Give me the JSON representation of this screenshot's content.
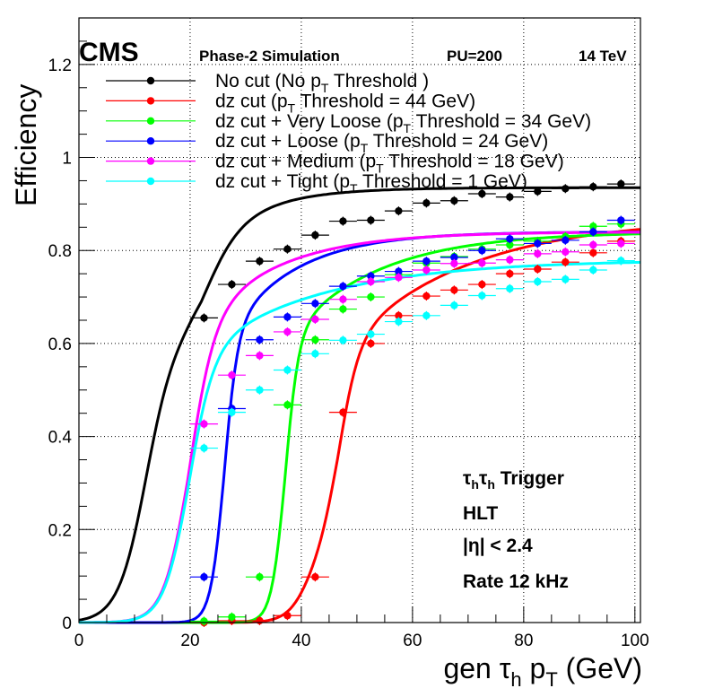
{
  "header": {
    "experiment": "CMS",
    "simulation": "Phase-2 Simulation",
    "pileup": "PU=200",
    "energy": "14 TeV"
  },
  "annotations": {
    "trigger": "τhτh Trigger",
    "level": "HLT",
    "eta_cut": "|η| < 2.4",
    "rate": "Rate 12 kHz"
  },
  "chart_data": {
    "type": "scatter",
    "xlabel": "gen τh pT (GeV)",
    "ylabel": "Efficiency",
    "xlim": [
      0,
      101
    ],
    "ylim": [
      0,
      1.3
    ],
    "x_ticks": [
      0,
      20,
      40,
      60,
      80,
      100
    ],
    "y_ticks": [
      0,
      0.2,
      0.4,
      0.6,
      0.8,
      1,
      1.2
    ],
    "y_tick_labels": [
      "0",
      "0.2",
      "0.4",
      "0.6",
      "0.8",
      "1",
      "1.2"
    ],
    "grid": true,
    "legend_position": "top",
    "x": [
      22.5,
      27.5,
      32.5,
      37.5,
      42.5,
      47.5,
      52.5,
      57.5,
      62.5,
      67.5,
      72.5,
      77.5,
      82.5,
      87.5,
      92.5,
      97.5
    ],
    "x_bin_half_width": 2.5,
    "series": [
      {
        "name": "No cut (No pT Threshold )",
        "legend_main": "No cut (No p",
        "legend_sub": "T",
        "legend_tail": " Threshold )",
        "color": "#000000",
        "values": [
          0.655,
          0.727,
          0.777,
          0.803,
          0.833,
          0.863,
          0.865,
          0.885,
          0.902,
          0.907,
          0.922,
          0.915,
          0.927,
          0.933,
          0.937,
          0.943
        ],
        "fit": {
          "model": "double",
          "p1": 12,
          "w1": 2.5,
          "a1": 0.6,
          "p2": 22,
          "w2": 3,
          "a2": 0.335,
          "tail": 10
        }
      },
      {
        "name": "dz cut (pT Threshold = 44 GeV)",
        "legend_main": "dz cut (p",
        "legend_sub": "T",
        "legend_tail": " Threshold = 44 GeV)",
        "color": "#ff0000",
        "values": [
          0.0,
          0.004,
          0.004,
          0.015,
          0.098,
          0.452,
          0.6,
          0.66,
          0.702,
          0.715,
          0.727,
          0.75,
          0.76,
          0.775,
          0.795,
          0.82
        ],
        "fit": {
          "model": "double",
          "p1": 41,
          "w1": 2,
          "a1": 0.14,
          "p2": 46.5,
          "w2": 1.8,
          "a2": 0.73,
          "tail": 22
        }
      },
      {
        "name": "dz cut + Very Loose (pT Threshold = 34 GeV)",
        "legend_main": "dz cut + Very Loose (p",
        "legend_sub": "T",
        "legend_tail": " Threshold = 34 GeV)",
        "color": "#00ff00",
        "values": [
          0.003,
          0.012,
          0.098,
          0.468,
          0.608,
          0.674,
          0.7,
          0.748,
          0.773,
          0.787,
          0.803,
          0.812,
          0.82,
          0.83,
          0.852,
          0.857
        ],
        "fit": {
          "model": "single",
          "p1": 37,
          "w1": 1.2,
          "a1": 0.84,
          "tail": 16
        }
      },
      {
        "name": "dz cut + Loose (pT Threshold = 24 GeV)",
        "legend_main": "dz cut + Loose (p",
        "legend_sub": "T",
        "legend_tail": " Threshold = 24 GeV)",
        "color": "#0000ff",
        "values": [
          0.098,
          0.46,
          0.608,
          0.657,
          0.686,
          0.723,
          0.745,
          0.755,
          0.777,
          0.785,
          0.8,
          0.825,
          0.815,
          0.822,
          0.84,
          0.865
        ],
        "fit": {
          "model": "single",
          "p1": 26,
          "w1": 1.2,
          "a1": 0.84,
          "tail": 12
        }
      },
      {
        "name": "dz cut + Medium (pT Threshold = 18 GeV)",
        "legend_main": "dz cut + Medium (p",
        "legend_sub": "T",
        "legend_tail": " Threshold = 18 GeV)",
        "color": "#ff00ff",
        "values": [
          0.427,
          0.532,
          0.574,
          0.625,
          0.652,
          0.695,
          0.733,
          0.742,
          0.758,
          0.772,
          0.773,
          0.78,
          0.793,
          0.797,
          0.812,
          0.815
        ],
        "fit": {
          "model": "single",
          "p1": 19.5,
          "w1": 2.2,
          "a1": 0.84,
          "tail": 14
        }
      },
      {
        "name": "dz cut + Tight (pT Threshold = 1 GeV)",
        "legend_main": "dz cut + Tight (p",
        "legend_sub": "T",
        "legend_tail": " Threshold = 1 GeV)",
        "color": "#00ffff",
        "values": [
          0.375,
          0.452,
          0.5,
          0.543,
          0.578,
          0.607,
          0.62,
          0.647,
          0.66,
          0.682,
          0.703,
          0.718,
          0.733,
          0.738,
          0.758,
          0.778
        ],
        "fit": {
          "model": "single",
          "p1": 19.5,
          "w1": 2.2,
          "a1": 0.78,
          "tail": 22
        }
      }
    ]
  }
}
